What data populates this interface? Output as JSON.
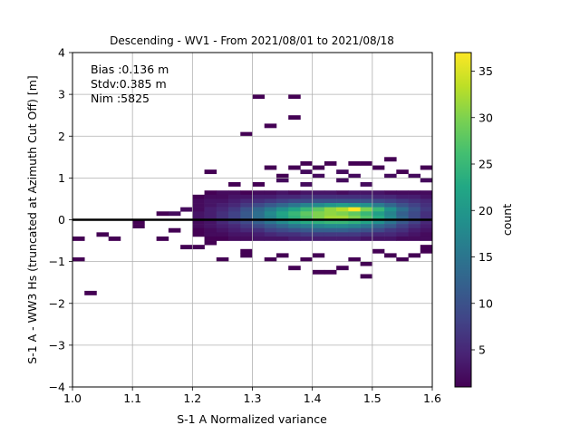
{
  "chart_data": {
    "type": "heatmap",
    "title": "Descending - WV1 - From 2021/08/01 to 2021/08/18",
    "xlabel": "S-1 A Normalized variance",
    "ylabel": "S-1 A - WW3 Hs (truncated at Azimuth Cut Off) [m]",
    "xlim": [
      1.0,
      1.6
    ],
    "ylim": [
      -4,
      4
    ],
    "xticks": [
      "1.0",
      "1.1",
      "1.2",
      "1.3",
      "1.4",
      "1.5",
      "1.6"
    ],
    "yticks": [
      "4",
      "3",
      "2",
      "1",
      "0",
      "−1",
      "−2",
      "−3",
      "−4"
    ],
    "grid": true,
    "reference_line_y": 0,
    "annotations": [
      "Bias :0.136 m",
      "Stdv:0.385 m",
      "Nim :5825"
    ],
    "colorbar": {
      "label": "count",
      "range": [
        1,
        37
      ],
      "ticks": [
        "5",
        "10",
        "15",
        "20",
        "25",
        "30",
        "35"
      ],
      "colormap": "viridis"
    },
    "bin_size": {
      "x": 0.02,
      "y": 0.1
    },
    "bins_x": [
      1.2,
      1.22,
      1.24,
      1.26,
      1.28,
      1.3,
      1.32,
      1.34,
      1.36,
      1.38,
      1.4,
      1.42,
      1.44,
      1.46,
      1.48,
      1.5,
      1.52,
      1.54,
      1.56,
      1.58
    ],
    "bins_y": [
      0.6,
      0.5,
      0.4,
      0.3,
      0.2,
      0.1,
      0.0,
      -0.1,
      -0.2,
      -0.3,
      -0.4,
      -0.5
    ],
    "counts": [
      [
        0,
        1,
        2,
        2,
        1,
        2,
        2,
        3,
        2,
        3,
        3,
        3,
        2,
        3,
        3,
        3,
        2,
        2,
        2,
        2
      ],
      [
        1,
        2,
        2,
        3,
        3,
        4,
        4,
        5,
        5,
        6,
        6,
        6,
        6,
        6,
        6,
        5,
        5,
        4,
        4,
        3
      ],
      [
        2,
        3,
        3,
        4,
        5,
        6,
        7,
        8,
        9,
        9,
        10,
        10,
        10,
        10,
        10,
        9,
        8,
        7,
        6,
        5
      ],
      [
        2,
        3,
        4,
        5,
        7,
        9,
        11,
        13,
        15,
        17,
        18,
        20,
        21,
        20,
        19,
        16,
        13,
        10,
        8,
        6
      ],
      [
        2,
        4,
        5,
        7,
        10,
        13,
        16,
        19,
        22,
        25,
        28,
        31,
        33,
        37,
        30,
        25,
        19,
        14,
        10,
        7
      ],
      [
        3,
        4,
        6,
        8,
        11,
        14,
        18,
        22,
        25,
        28,
        30,
        31,
        30,
        28,
        25,
        21,
        17,
        12,
        9,
        6
      ],
      [
        3,
        4,
        6,
        8,
        11,
        14,
        17,
        21,
        24,
        27,
        30,
        32,
        32,
        30,
        27,
        23,
        18,
        13,
        9,
        6
      ],
      [
        2,
        3,
        5,
        7,
        9,
        12,
        15,
        18,
        21,
        23,
        24,
        25,
        25,
        24,
        22,
        19,
        15,
        11,
        8,
        5
      ],
      [
        2,
        3,
        4,
        5,
        7,
        9,
        11,
        13,
        15,
        16,
        17,
        18,
        18,
        17,
        15,
        13,
        11,
        8,
        6,
        4
      ],
      [
        1,
        2,
        3,
        4,
        5,
        6,
        8,
        9,
        10,
        11,
        12,
        12,
        12,
        11,
        10,
        9,
        7,
        6,
        4,
        3
      ],
      [
        1,
        2,
        2,
        3,
        3,
        4,
        5,
        6,
        6,
        7,
        7,
        7,
        7,
        7,
        6,
        5,
        5,
        4,
        3,
        2
      ],
      [
        0,
        1,
        1,
        2,
        2,
        3,
        3,
        3,
        4,
        4,
        4,
        4,
        4,
        4,
        3,
        3,
        3,
        2,
        2,
        2
      ]
    ],
    "sparse_bins": [
      {
        "x": 1.0,
        "y": -0.5,
        "count": 1
      },
      {
        "x": 1.0,
        "y": -1.0,
        "count": 1
      },
      {
        "x": 1.02,
        "y": -1.8,
        "count": 1
      },
      {
        "x": 1.04,
        "y": -0.4,
        "count": 1
      },
      {
        "x": 1.06,
        "y": -0.5,
        "count": 1
      },
      {
        "x": 1.1,
        "y": -0.1,
        "count": 1
      },
      {
        "x": 1.1,
        "y": -0.2,
        "count": 1
      },
      {
        "x": 1.14,
        "y": 0.1,
        "count": 1
      },
      {
        "x": 1.14,
        "y": -0.5,
        "count": 1
      },
      {
        "x": 1.16,
        "y": 0.1,
        "count": 2
      },
      {
        "x": 1.16,
        "y": -0.3,
        "count": 1
      },
      {
        "x": 1.18,
        "y": -0.7,
        "count": 1
      },
      {
        "x": 1.18,
        "y": 0.2,
        "count": 2
      },
      {
        "x": 1.22,
        "y": 1.1,
        "count": 1
      },
      {
        "x": 1.24,
        "y": -1.0,
        "count": 1
      },
      {
        "x": 1.28,
        "y": 2.0,
        "count": 1
      },
      {
        "x": 1.28,
        "y": -0.8,
        "count": 1
      },
      {
        "x": 1.28,
        "y": -0.9,
        "count": 1
      },
      {
        "x": 1.3,
        "y": 2.9,
        "count": 1
      },
      {
        "x": 1.32,
        "y": 2.2,
        "count": 1
      },
      {
        "x": 1.32,
        "y": 1.2,
        "count": 1
      },
      {
        "x": 1.32,
        "y": -1.0,
        "count": 1
      },
      {
        "x": 1.34,
        "y": 1.0,
        "count": 1
      },
      {
        "x": 1.34,
        "y": -0.9,
        "count": 1
      },
      {
        "x": 1.36,
        "y": 2.9,
        "count": 1
      },
      {
        "x": 1.36,
        "y": 2.4,
        "count": 1
      },
      {
        "x": 1.36,
        "y": 1.2,
        "count": 1
      },
      {
        "x": 1.36,
        "y": -1.2,
        "count": 1
      },
      {
        "x": 1.38,
        "y": 1.3,
        "count": 1
      },
      {
        "x": 1.38,
        "y": 1.1,
        "count": 2
      },
      {
        "x": 1.38,
        "y": -1.0,
        "count": 1
      },
      {
        "x": 1.38,
        "y": 0.8,
        "count": 2
      },
      {
        "x": 1.4,
        "y": 1.2,
        "count": 1
      },
      {
        "x": 1.4,
        "y": 1.0,
        "count": 2
      },
      {
        "x": 1.4,
        "y": -1.3,
        "count": 1
      },
      {
        "x": 1.4,
        "y": -0.9,
        "count": 1
      },
      {
        "x": 1.42,
        "y": 1.3,
        "count": 1
      },
      {
        "x": 1.42,
        "y": -1.3,
        "count": 1
      },
      {
        "x": 1.44,
        "y": 1.1,
        "count": 2
      },
      {
        "x": 1.44,
        "y": -1.2,
        "count": 1
      },
      {
        "x": 1.44,
        "y": 0.9,
        "count": 2
      },
      {
        "x": 1.46,
        "y": 1.3,
        "count": 1
      },
      {
        "x": 1.46,
        "y": -1.0,
        "count": 1
      },
      {
        "x": 1.46,
        "y": 1.0,
        "count": 2
      },
      {
        "x": 1.48,
        "y": -1.1,
        "count": 1
      },
      {
        "x": 1.48,
        "y": -1.4,
        "count": 1
      },
      {
        "x": 1.48,
        "y": 0.8,
        "count": 2
      },
      {
        "x": 1.48,
        "y": 1.3,
        "count": 1
      },
      {
        "x": 1.5,
        "y": 1.2,
        "count": 1
      },
      {
        "x": 1.5,
        "y": -0.8,
        "count": 1
      },
      {
        "x": 1.52,
        "y": 1.4,
        "count": 1
      },
      {
        "x": 1.52,
        "y": 1.0,
        "count": 2
      },
      {
        "x": 1.52,
        "y": -0.9,
        "count": 1
      },
      {
        "x": 1.54,
        "y": 1.1,
        "count": 1
      },
      {
        "x": 1.54,
        "y": -1.0,
        "count": 1
      },
      {
        "x": 1.56,
        "y": 1.0,
        "count": 2
      },
      {
        "x": 1.56,
        "y": -0.9,
        "count": 1
      },
      {
        "x": 1.58,
        "y": 1.2,
        "count": 1
      },
      {
        "x": 1.58,
        "y": -0.8,
        "count": 1
      },
      {
        "x": 1.58,
        "y": 0.9,
        "count": 2
      },
      {
        "x": 1.58,
        "y": -0.7,
        "count": 1
      },
      {
        "x": 1.34,
        "y": 0.9,
        "count": 2
      },
      {
        "x": 1.3,
        "y": 0.8,
        "count": 1
      },
      {
        "x": 1.26,
        "y": 0.8,
        "count": 1
      },
      {
        "x": 1.22,
        "y": -0.6,
        "count": 1
      },
      {
        "x": 1.2,
        "y": -0.7,
        "count": 1
      }
    ]
  }
}
